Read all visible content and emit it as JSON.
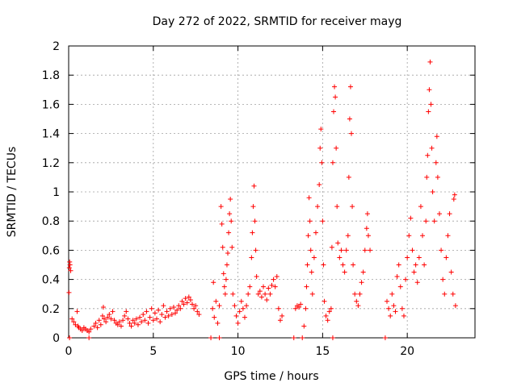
{
  "chart_data": {
    "type": "scatter",
    "title": "Day 272 of 2022, SRMTID for receiver mayg",
    "xlabel": "GPS time / hours",
    "ylabel": "SRMTID / TECUs",
    "xlim": [
      0,
      24
    ],
    "ylim": [
      0,
      2
    ],
    "xticks": [
      0,
      5,
      10,
      15,
      20
    ],
    "yticks": [
      0,
      0.2,
      0.4,
      0.6,
      0.8,
      1,
      1.2,
      1.4,
      1.6,
      1.8,
      2
    ],
    "xtick_labels": [
      "0",
      "5",
      "10",
      "15",
      "20"
    ],
    "ytick_labels": [
      "0",
      "0.2",
      "0.4",
      "0.6",
      "0.8",
      "1",
      "1.2",
      "1.4",
      "1.6",
      "1.8",
      "2"
    ],
    "grid": true,
    "marker": "+",
    "color": "#ff0000",
    "series": [
      {
        "name": "SRMTID",
        "points": [
          [
            0.02,
            0.31
          ],
          [
            0.04,
            0.48
          ],
          [
            0.06,
            0.52
          ],
          [
            0.08,
            0.5
          ],
          [
            0.12,
            0.46
          ],
          [
            0.2,
            0.13
          ],
          [
            0.3,
            0.11
          ],
          [
            0.4,
            0.09
          ],
          [
            0.5,
            0.18
          ],
          [
            0.55,
            0.08
          ],
          [
            0.6,
            0.07
          ],
          [
            0.7,
            0.06
          ],
          [
            0.8,
            0.05
          ],
          [
            0.9,
            0.07
          ],
          [
            1.0,
            0.06
          ],
          [
            1.1,
            0.05
          ],
          [
            1.2,
            0.04
          ],
          [
            1.3,
            0.06
          ],
          [
            1.5,
            0.08
          ],
          [
            1.6,
            0.1
          ],
          [
            1.7,
            0.07
          ],
          [
            1.8,
            0.12
          ],
          [
            1.9,
            0.09
          ],
          [
            2.0,
            0.15
          ],
          [
            2.05,
            0.21
          ],
          [
            2.1,
            0.13
          ],
          [
            2.2,
            0.11
          ],
          [
            2.3,
            0.14
          ],
          [
            2.4,
            0.16
          ],
          [
            2.5,
            0.13
          ],
          [
            2.6,
            0.18
          ],
          [
            2.7,
            0.12
          ],
          [
            2.8,
            0.1
          ],
          [
            2.9,
            0.09
          ],
          [
            3.0,
            0.11
          ],
          [
            3.1,
            0.08
          ],
          [
            3.2,
            0.12
          ],
          [
            3.3,
            0.15
          ],
          [
            3.4,
            0.18
          ],
          [
            3.5,
            0.13
          ],
          [
            3.6,
            0.1
          ],
          [
            3.7,
            0.08
          ],
          [
            3.8,
            0.12
          ],
          [
            3.9,
            0.1
          ],
          [
            4.0,
            0.13
          ],
          [
            4.1,
            0.09
          ],
          [
            4.2,
            0.14
          ],
          [
            4.3,
            0.11
          ],
          [
            4.4,
            0.16
          ],
          [
            4.5,
            0.12
          ],
          [
            4.6,
            0.18
          ],
          [
            4.7,
            0.1
          ],
          [
            4.8,
            0.14
          ],
          [
            4.9,
            0.2
          ],
          [
            5.0,
            0.12
          ],
          [
            5.1,
            0.17
          ],
          [
            5.2,
            0.13
          ],
          [
            5.3,
            0.19
          ],
          [
            5.4,
            0.11
          ],
          [
            5.5,
            0.16
          ],
          [
            5.6,
            0.22
          ],
          [
            5.7,
            0.14
          ],
          [
            5.8,
            0.18
          ],
          [
            5.9,
            0.15
          ],
          [
            6.0,
            0.2
          ],
          [
            6.1,
            0.16
          ],
          [
            6.2,
            0.21
          ],
          [
            6.3,
            0.17
          ],
          [
            6.4,
            0.19
          ],
          [
            6.5,
            0.22
          ],
          [
            6.6,
            0.2
          ],
          [
            6.7,
            0.25
          ],
          [
            6.8,
            0.23
          ],
          [
            6.9,
            0.27
          ],
          [
            7.0,
            0.24
          ],
          [
            7.1,
            0.28
          ],
          [
            7.2,
            0.26
          ],
          [
            7.3,
            0.23
          ],
          [
            7.4,
            0.2
          ],
          [
            7.5,
            0.22
          ],
          [
            7.6,
            0.18
          ],
          [
            7.7,
            0.16
          ],
          [
            0.05,
            0.0
          ],
          [
            1.2,
            0.0
          ],
          [
            8.4,
            0.0
          ],
          [
            8.9,
            0.0
          ],
          [
            13.3,
            0.0
          ],
          [
            13.8,
            0.0
          ],
          [
            15.6,
            0.0
          ],
          [
            18.7,
            0.0
          ],
          [
            8.5,
            0.2
          ],
          [
            8.55,
            0.38
          ],
          [
            8.6,
            0.14
          ],
          [
            8.7,
            0.25
          ],
          [
            8.8,
            0.1
          ],
          [
            8.9,
            0.22
          ],
          [
            9.0,
            0.9
          ],
          [
            9.05,
            0.78
          ],
          [
            9.1,
            0.62
          ],
          [
            9.15,
            0.44
          ],
          [
            9.2,
            0.35
          ],
          [
            9.25,
            0.3
          ],
          [
            9.3,
            0.4
          ],
          [
            9.35,
            0.5
          ],
          [
            9.4,
            0.58
          ],
          [
            9.45,
            0.72
          ],
          [
            9.5,
            0.85
          ],
          [
            9.55,
            0.95
          ],
          [
            9.6,
            0.8
          ],
          [
            9.65,
            0.62
          ],
          [
            9.7,
            0.3
          ],
          [
            9.8,
            0.22
          ],
          [
            9.9,
            0.15
          ],
          [
            10.0,
            0.1
          ],
          [
            10.1,
            0.18
          ],
          [
            10.2,
            0.25
          ],
          [
            10.3,
            0.2
          ],
          [
            10.4,
            0.14
          ],
          [
            10.5,
            0.22
          ],
          [
            10.6,
            0.3
          ],
          [
            10.7,
            0.35
          ],
          [
            10.8,
            0.55
          ],
          [
            10.85,
            0.72
          ],
          [
            10.9,
            0.9
          ],
          [
            10.95,
            1.04
          ],
          [
            11.0,
            0.8
          ],
          [
            11.05,
            0.6
          ],
          [
            11.1,
            0.42
          ],
          [
            11.2,
            0.3
          ],
          [
            11.3,
            0.32
          ],
          [
            11.4,
            0.28
          ],
          [
            11.5,
            0.35
          ],
          [
            11.6,
            0.3
          ],
          [
            11.7,
            0.26
          ],
          [
            11.8,
            0.34
          ],
          [
            11.9,
            0.3
          ],
          [
            12.0,
            0.36
          ],
          [
            12.1,
            0.4
          ],
          [
            12.2,
            0.35
          ],
          [
            12.3,
            0.42
          ],
          [
            12.4,
            0.2
          ],
          [
            12.5,
            0.12
          ],
          [
            12.6,
            0.15
          ],
          [
            13.4,
            0.2
          ],
          [
            13.5,
            0.22
          ],
          [
            13.6,
            0.21
          ],
          [
            13.7,
            0.23
          ],
          [
            13.9,
            0.08
          ],
          [
            14.0,
            0.2
          ],
          [
            14.05,
            0.35
          ],
          [
            14.1,
            0.5
          ],
          [
            14.15,
            0.7
          ],
          [
            14.2,
            0.96
          ],
          [
            14.25,
            0.8
          ],
          [
            14.3,
            0.6
          ],
          [
            14.35,
            0.45
          ],
          [
            14.4,
            0.3
          ],
          [
            14.5,
            0.55
          ],
          [
            14.6,
            0.72
          ],
          [
            14.7,
            0.9
          ],
          [
            14.8,
            1.05
          ],
          [
            14.85,
            1.3
          ],
          [
            14.9,
            1.43
          ],
          [
            14.95,
            1.2
          ],
          [
            15.0,
            0.8
          ],
          [
            15.05,
            0.5
          ],
          [
            15.1,
            0.25
          ],
          [
            15.2,
            0.15
          ],
          [
            15.3,
            0.12
          ],
          [
            15.4,
            0.18
          ],
          [
            15.5,
            0.2
          ],
          [
            15.55,
            0.62
          ],
          [
            15.6,
            1.2
          ],
          [
            15.65,
            1.55
          ],
          [
            15.7,
            1.72
          ],
          [
            15.75,
            1.65
          ],
          [
            15.8,
            1.3
          ],
          [
            15.85,
            0.9
          ],
          [
            15.9,
            0.65
          ],
          [
            16.0,
            0.55
          ],
          [
            16.1,
            0.6
          ],
          [
            16.2,
            0.5
          ],
          [
            16.3,
            0.45
          ],
          [
            16.4,
            0.6
          ],
          [
            16.5,
            0.7
          ],
          [
            16.55,
            1.1
          ],
          [
            16.6,
            1.5
          ],
          [
            16.65,
            1.72
          ],
          [
            16.7,
            1.4
          ],
          [
            16.75,
            0.9
          ],
          [
            16.8,
            0.5
          ],
          [
            16.9,
            0.3
          ],
          [
            17.0,
            0.25
          ],
          [
            17.1,
            0.22
          ],
          [
            17.2,
            0.3
          ],
          [
            17.3,
            0.38
          ],
          [
            17.4,
            0.45
          ],
          [
            17.5,
            0.6
          ],
          [
            17.6,
            0.75
          ],
          [
            17.65,
            0.85
          ],
          [
            17.7,
            0.7
          ],
          [
            17.8,
            0.6
          ],
          [
            18.8,
            0.25
          ],
          [
            18.9,
            0.2
          ],
          [
            19.0,
            0.15
          ],
          [
            19.1,
            0.3
          ],
          [
            19.2,
            0.22
          ],
          [
            19.3,
            0.18
          ],
          [
            19.4,
            0.42
          ],
          [
            19.5,
            0.5
          ],
          [
            19.6,
            0.35
          ],
          [
            19.7,
            0.2
          ],
          [
            19.8,
            0.15
          ],
          [
            19.9,
            0.4
          ],
          [
            20.0,
            0.55
          ],
          [
            20.1,
            0.7
          ],
          [
            20.2,
            0.82
          ],
          [
            20.3,
            0.6
          ],
          [
            20.4,
            0.45
          ],
          [
            20.5,
            0.5
          ],
          [
            20.6,
            0.38
          ],
          [
            20.7,
            0.55
          ],
          [
            20.8,
            0.9
          ],
          [
            20.9,
            0.7
          ],
          [
            21.0,
            0.5
          ],
          [
            21.1,
            0.8
          ],
          [
            21.15,
            1.1
          ],
          [
            21.2,
            1.25
          ],
          [
            21.25,
            1.55
          ],
          [
            21.3,
            1.7
          ],
          [
            21.35,
            1.89
          ],
          [
            21.4,
            1.6
          ],
          [
            21.45,
            1.3
          ],
          [
            21.5,
            1.0
          ],
          [
            21.6,
            0.8
          ],
          [
            21.7,
            1.2
          ],
          [
            21.75,
            1.38
          ],
          [
            21.8,
            1.1
          ],
          [
            21.9,
            0.85
          ],
          [
            22.0,
            0.6
          ],
          [
            22.1,
            0.4
          ],
          [
            22.2,
            0.3
          ],
          [
            22.3,
            0.55
          ],
          [
            22.4,
            0.7
          ],
          [
            22.5,
            0.85
          ],
          [
            22.6,
            0.45
          ],
          [
            22.7,
            0.3
          ],
          [
            22.75,
            0.95
          ],
          [
            22.8,
            0.98
          ],
          [
            22.85,
            0.22
          ]
        ]
      }
    ]
  }
}
